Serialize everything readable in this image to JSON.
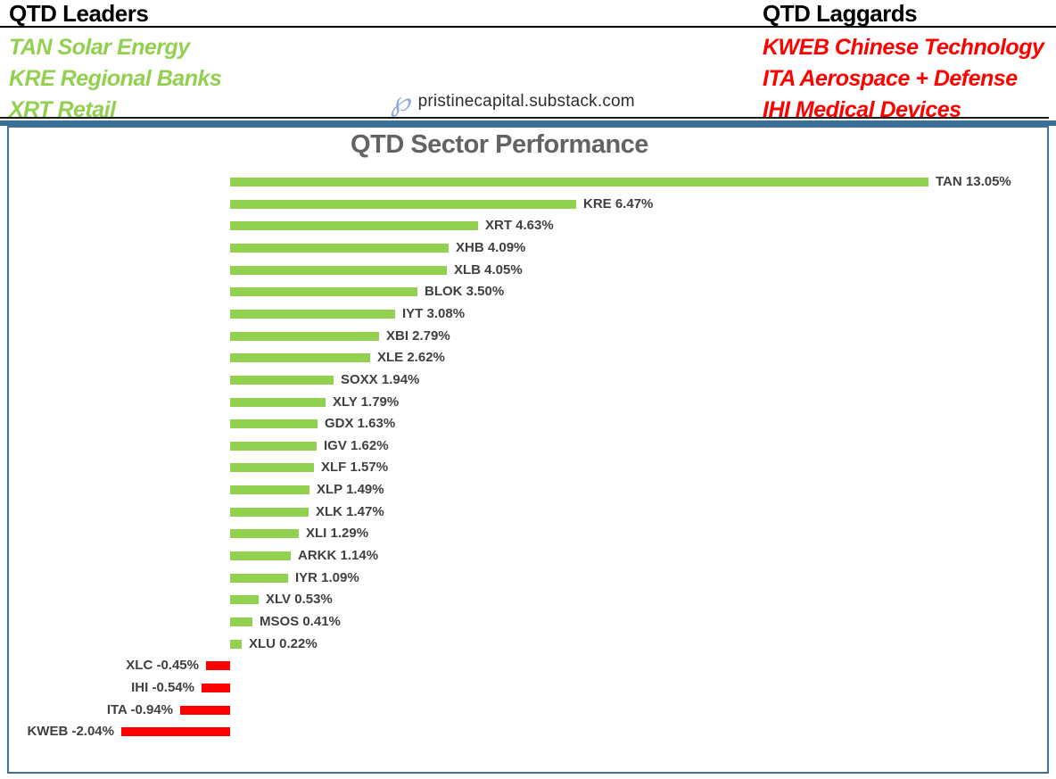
{
  "header": {
    "leaders_title": "QTD Leaders",
    "laggards_title": "QTD Laggards",
    "leaders": [
      "TAN Solar Energy",
      "KRE Regional Banks",
      "XRT Retail"
    ],
    "laggards": [
      "KWEB Chinese Technology",
      "ITA Aerospace + Defense",
      "IHI Medical Devices"
    ],
    "logo_glyph": "℘",
    "watermark": "pristinecapital.substack.com"
  },
  "colors": {
    "positive_bar": "#92D050",
    "negative_bar": "#FF0000",
    "leaders_text": "#92D050",
    "laggards_text": "#FF0000",
    "bar_label": "#404040",
    "chart_title": "#636363",
    "chart_border": "#41719C",
    "divider_blue": "#3A7097",
    "header_rule": "#000000",
    "logo": "#8FAADC"
  },
  "chart_data": {
    "type": "bar",
    "orientation": "horizontal",
    "title": "QTD Sector Performance",
    "categories": [
      "TAN",
      "KRE",
      "XRT",
      "XHB",
      "XLB",
      "BLOK",
      "IYT",
      "XBI",
      "XLE",
      "SOXX",
      "XLY",
      "GDX",
      "IGV",
      "XLF",
      "XLP",
      "XLK",
      "XLI",
      "ARKK",
      "IYR",
      "XLV",
      "MSOS",
      "XLU",
      "XLC",
      "IHI",
      "ITA",
      "KWEB"
    ],
    "values": [
      13.05,
      6.47,
      4.63,
      4.09,
      4.05,
      3.5,
      3.08,
      2.79,
      2.62,
      1.94,
      1.79,
      1.63,
      1.62,
      1.57,
      1.49,
      1.47,
      1.29,
      1.14,
      1.09,
      0.53,
      0.41,
      0.22,
      -0.45,
      -0.54,
      -0.94,
      -2.04
    ],
    "labels": [
      "TAN 13.05%",
      "KRE 6.47%",
      "XRT 4.63%",
      "XHB 4.09%",
      "XLB 4.05%",
      "BLOK 3.50%",
      "IYT 3.08%",
      "XBI 2.79%",
      "XLE 2.62%",
      "SOXX 1.94%",
      "XLY 1.79%",
      "GDX 1.63%",
      "IGV 1.62%",
      "XLF 1.57%",
      "XLP 1.49%",
      "XLK 1.47%",
      "XLI 1.29%",
      "ARKK 1.14%",
      "IYR 1.09%",
      "XLV 0.53%",
      "MSOS 0.41%",
      "XLU 0.22%",
      "XLC -0.45%",
      "IHI -0.54%",
      "ITA -0.94%",
      "KWEB -2.04%"
    ],
    "value_suffix": "%",
    "xlim": [
      -2.5,
      15
    ],
    "grid": false,
    "legend": false,
    "data_labels": "outside-end"
  }
}
